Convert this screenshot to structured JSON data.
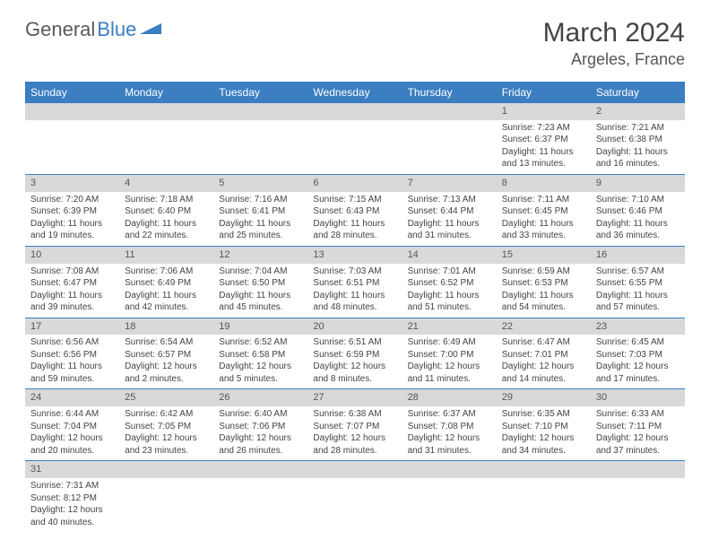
{
  "logo": {
    "text1": "General",
    "text2": "Blue",
    "icon_color": "#3b7ec1"
  },
  "title": "March 2024",
  "location": "Argeles, France",
  "colors": {
    "header_bg": "#3b7ec1",
    "header_text": "#ffffff",
    "daynum_bg": "#d9d9d9",
    "cell_border": "#3b7ec1",
    "text": "#444444"
  },
  "day_headers": [
    "Sunday",
    "Monday",
    "Tuesday",
    "Wednesday",
    "Thursday",
    "Friday",
    "Saturday"
  ],
  "weeks": [
    [
      null,
      null,
      null,
      null,
      null,
      {
        "n": "1",
        "sr": "Sunrise: 7:23 AM",
        "ss": "Sunset: 6:37 PM",
        "dl": "Daylight: 11 hours and 13 minutes."
      },
      {
        "n": "2",
        "sr": "Sunrise: 7:21 AM",
        "ss": "Sunset: 6:38 PM",
        "dl": "Daylight: 11 hours and 16 minutes."
      }
    ],
    [
      {
        "n": "3",
        "sr": "Sunrise: 7:20 AM",
        "ss": "Sunset: 6:39 PM",
        "dl": "Daylight: 11 hours and 19 minutes."
      },
      {
        "n": "4",
        "sr": "Sunrise: 7:18 AM",
        "ss": "Sunset: 6:40 PM",
        "dl": "Daylight: 11 hours and 22 minutes."
      },
      {
        "n": "5",
        "sr": "Sunrise: 7:16 AM",
        "ss": "Sunset: 6:41 PM",
        "dl": "Daylight: 11 hours and 25 minutes."
      },
      {
        "n": "6",
        "sr": "Sunrise: 7:15 AM",
        "ss": "Sunset: 6:43 PM",
        "dl": "Daylight: 11 hours and 28 minutes."
      },
      {
        "n": "7",
        "sr": "Sunrise: 7:13 AM",
        "ss": "Sunset: 6:44 PM",
        "dl": "Daylight: 11 hours and 31 minutes."
      },
      {
        "n": "8",
        "sr": "Sunrise: 7:11 AM",
        "ss": "Sunset: 6:45 PM",
        "dl": "Daylight: 11 hours and 33 minutes."
      },
      {
        "n": "9",
        "sr": "Sunrise: 7:10 AM",
        "ss": "Sunset: 6:46 PM",
        "dl": "Daylight: 11 hours and 36 minutes."
      }
    ],
    [
      {
        "n": "10",
        "sr": "Sunrise: 7:08 AM",
        "ss": "Sunset: 6:47 PM",
        "dl": "Daylight: 11 hours and 39 minutes."
      },
      {
        "n": "11",
        "sr": "Sunrise: 7:06 AM",
        "ss": "Sunset: 6:49 PM",
        "dl": "Daylight: 11 hours and 42 minutes."
      },
      {
        "n": "12",
        "sr": "Sunrise: 7:04 AM",
        "ss": "Sunset: 6:50 PM",
        "dl": "Daylight: 11 hours and 45 minutes."
      },
      {
        "n": "13",
        "sr": "Sunrise: 7:03 AM",
        "ss": "Sunset: 6:51 PM",
        "dl": "Daylight: 11 hours and 48 minutes."
      },
      {
        "n": "14",
        "sr": "Sunrise: 7:01 AM",
        "ss": "Sunset: 6:52 PM",
        "dl": "Daylight: 11 hours and 51 minutes."
      },
      {
        "n": "15",
        "sr": "Sunrise: 6:59 AM",
        "ss": "Sunset: 6:53 PM",
        "dl": "Daylight: 11 hours and 54 minutes."
      },
      {
        "n": "16",
        "sr": "Sunrise: 6:57 AM",
        "ss": "Sunset: 6:55 PM",
        "dl": "Daylight: 11 hours and 57 minutes."
      }
    ],
    [
      {
        "n": "17",
        "sr": "Sunrise: 6:56 AM",
        "ss": "Sunset: 6:56 PM",
        "dl": "Daylight: 11 hours and 59 minutes."
      },
      {
        "n": "18",
        "sr": "Sunrise: 6:54 AM",
        "ss": "Sunset: 6:57 PM",
        "dl": "Daylight: 12 hours and 2 minutes."
      },
      {
        "n": "19",
        "sr": "Sunrise: 6:52 AM",
        "ss": "Sunset: 6:58 PM",
        "dl": "Daylight: 12 hours and 5 minutes."
      },
      {
        "n": "20",
        "sr": "Sunrise: 6:51 AM",
        "ss": "Sunset: 6:59 PM",
        "dl": "Daylight: 12 hours and 8 minutes."
      },
      {
        "n": "21",
        "sr": "Sunrise: 6:49 AM",
        "ss": "Sunset: 7:00 PM",
        "dl": "Daylight: 12 hours and 11 minutes."
      },
      {
        "n": "22",
        "sr": "Sunrise: 6:47 AM",
        "ss": "Sunset: 7:01 PM",
        "dl": "Daylight: 12 hours and 14 minutes."
      },
      {
        "n": "23",
        "sr": "Sunrise: 6:45 AM",
        "ss": "Sunset: 7:03 PM",
        "dl": "Daylight: 12 hours and 17 minutes."
      }
    ],
    [
      {
        "n": "24",
        "sr": "Sunrise: 6:44 AM",
        "ss": "Sunset: 7:04 PM",
        "dl": "Daylight: 12 hours and 20 minutes."
      },
      {
        "n": "25",
        "sr": "Sunrise: 6:42 AM",
        "ss": "Sunset: 7:05 PM",
        "dl": "Daylight: 12 hours and 23 minutes."
      },
      {
        "n": "26",
        "sr": "Sunrise: 6:40 AM",
        "ss": "Sunset: 7:06 PM",
        "dl": "Daylight: 12 hours and 26 minutes."
      },
      {
        "n": "27",
        "sr": "Sunrise: 6:38 AM",
        "ss": "Sunset: 7:07 PM",
        "dl": "Daylight: 12 hours and 28 minutes."
      },
      {
        "n": "28",
        "sr": "Sunrise: 6:37 AM",
        "ss": "Sunset: 7:08 PM",
        "dl": "Daylight: 12 hours and 31 minutes."
      },
      {
        "n": "29",
        "sr": "Sunrise: 6:35 AM",
        "ss": "Sunset: 7:10 PM",
        "dl": "Daylight: 12 hours and 34 minutes."
      },
      {
        "n": "30",
        "sr": "Sunrise: 6:33 AM",
        "ss": "Sunset: 7:11 PM",
        "dl": "Daylight: 12 hours and 37 minutes."
      }
    ],
    [
      {
        "n": "31",
        "sr": "Sunrise: 7:31 AM",
        "ss": "Sunset: 8:12 PM",
        "dl": "Daylight: 12 hours and 40 minutes."
      },
      null,
      null,
      null,
      null,
      null,
      null
    ]
  ]
}
